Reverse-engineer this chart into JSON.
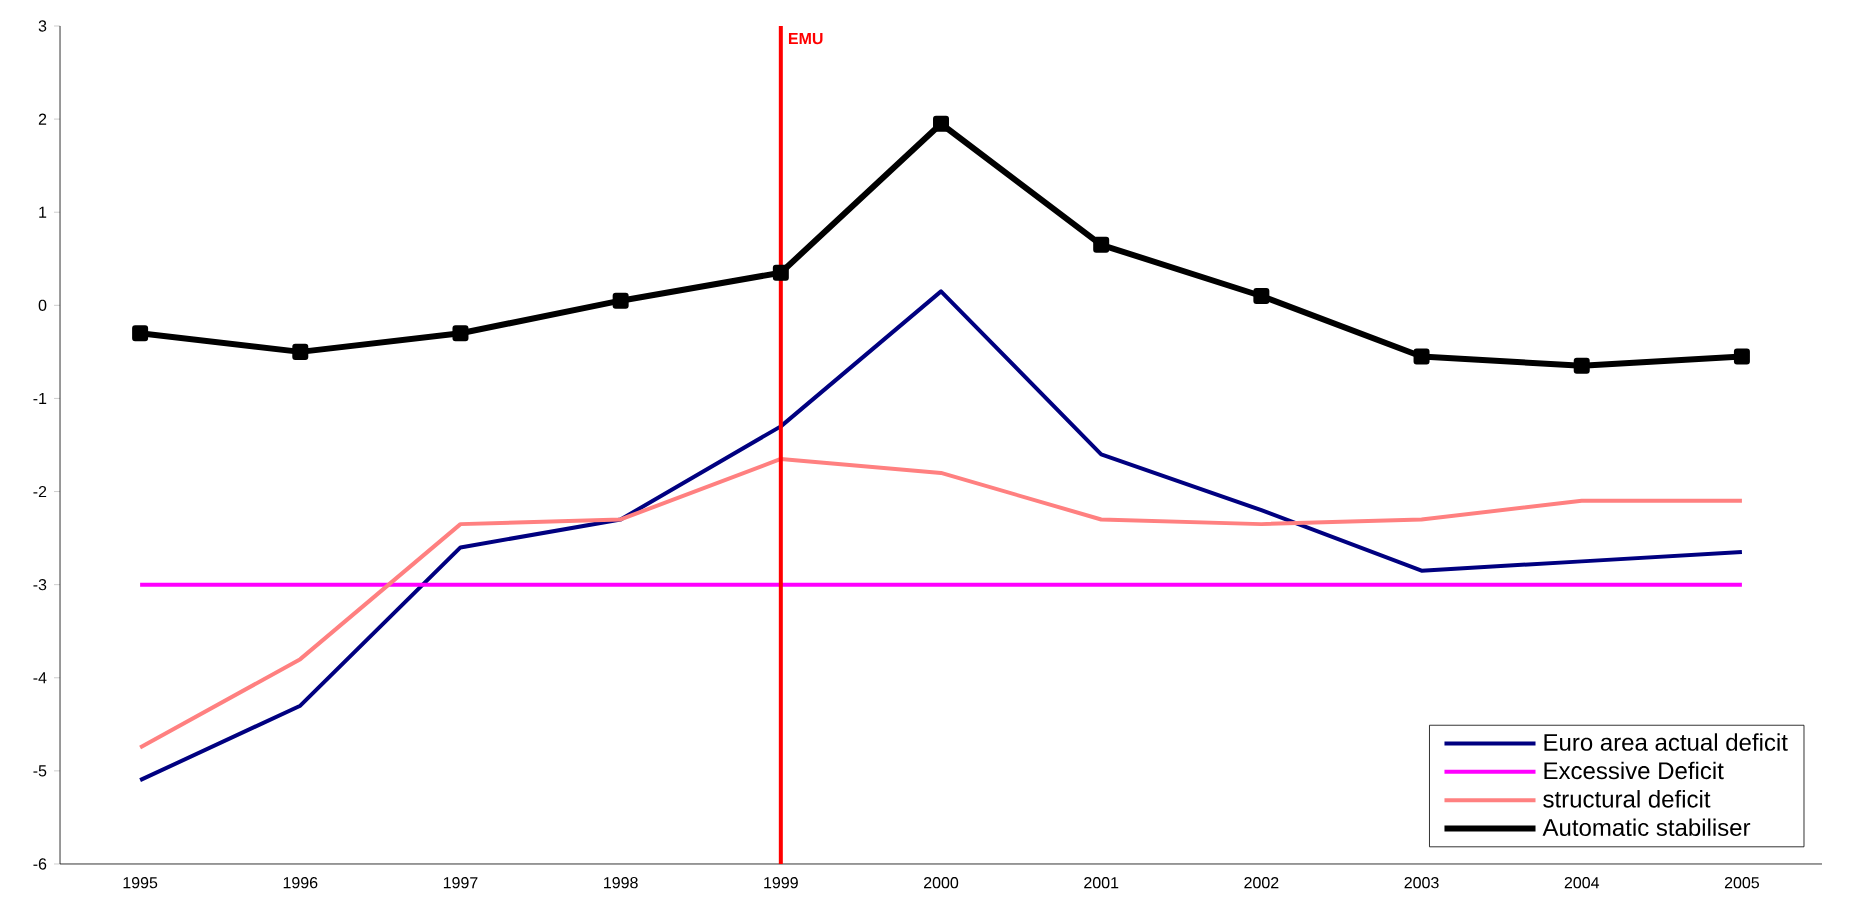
{
  "chart_data": {
    "type": "line",
    "categories": [
      "1995",
      "1996",
      "1997",
      "1998",
      "1999",
      "2000",
      "2001",
      "2002",
      "2003",
      "2004",
      "2005"
    ],
    "series": [
      {
        "name": "Euro area actual deficit",
        "color": "#000080",
        "values": [
          -5.1,
          -4.3,
          -2.6,
          -2.3,
          -1.3,
          0.15,
          -1.6,
          -2.2,
          -2.85,
          -2.75,
          -2.65
        ]
      },
      {
        "name": "Excessive Deficit",
        "color": "#ff00ff",
        "values": [
          -3,
          -3,
          -3,
          -3,
          -3,
          -3,
          -3,
          -3,
          -3,
          -3,
          -3
        ]
      },
      {
        "name": "structural deficit",
        "color": "#ff8080",
        "values": [
          -4.75,
          -3.8,
          -2.35,
          -2.3,
          -1.65,
          -1.8,
          -2.3,
          -2.35,
          -2.3,
          -2.1,
          -2.1
        ]
      },
      {
        "name": "Automatic stabiliser",
        "color": "#000000",
        "marker": "square",
        "values": [
          -0.3,
          -0.5,
          -0.3,
          0.05,
          0.35,
          1.95,
          0.65,
          0.1,
          -0.55,
          -0.65,
          -0.55
        ]
      }
    ],
    "ylim": [
      -6,
      3
    ],
    "yticks": [
      -6,
      -5,
      -4,
      -3,
      -2,
      -1,
      0,
      1,
      2,
      3
    ],
    "ref_lines": [
      {
        "axis": "x",
        "value": "1999",
        "label": "EMU",
        "color": "#ff0000"
      }
    ],
    "legend": "bottom right",
    "grid": false
  }
}
